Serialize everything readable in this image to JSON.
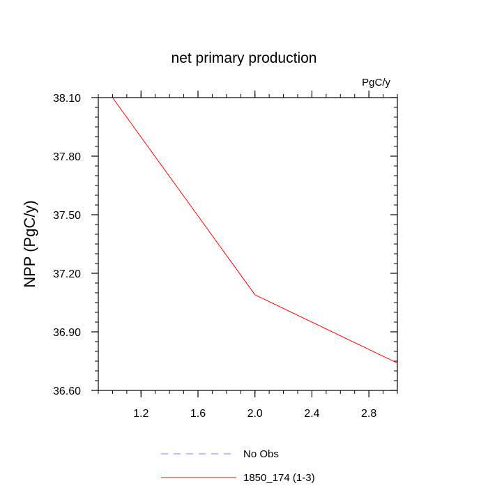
{
  "chart_data": {
    "type": "line",
    "title": "net primary production",
    "units_label": "PgC/y",
    "xlabel": "",
    "ylabel": "NPP  (PgC/y)",
    "xlim": [
      0.9,
      3.0
    ],
    "ylim": [
      36.6,
      38.1
    ],
    "x_ticks": [
      1.2,
      1.6,
      2.0,
      2.4,
      2.8
    ],
    "x_tick_labels": [
      "1.2",
      "1.6",
      "2.0",
      "2.4",
      "2.8"
    ],
    "y_ticks": [
      36.6,
      36.9,
      37.2,
      37.5,
      37.8,
      38.1
    ],
    "y_tick_labels": [
      "36.60",
      "36.90",
      "37.20",
      "37.50",
      "37.80",
      "38.10"
    ],
    "series": [
      {
        "name": "No Obs",
        "color": "#8080ff",
        "dash": true,
        "x": [],
        "values": []
      },
      {
        "name": "1850_174 (1-3)",
        "color": "#ff0000",
        "dash": false,
        "x": [
          1,
          2,
          3
        ],
        "values": [
          38.1,
          37.09,
          36.74
        ]
      }
    ],
    "legend_position": "bottom-center"
  }
}
